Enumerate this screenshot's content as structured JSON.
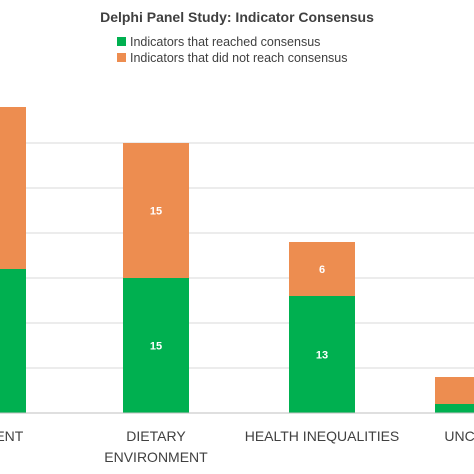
{
  "chart_data": {
    "type": "bar",
    "stacked": true,
    "title": "Delphi Panel Study: Indicator Consensus",
    "legend_position": "top",
    "grid": true,
    "ylim": [
      0,
      34
    ],
    "categories": [
      "ONMENT",
      "DIETARY ENVIRONMENT",
      "HEALTH INEQUALITIES",
      "UNCAT"
    ],
    "category_lines": [
      [
        "ONMENT"
      ],
      [
        "DIETARY",
        "ENVIRONMENT"
      ],
      [
        "HEALTH INEQUALITIES"
      ],
      [
        "UNCAT"
      ]
    ],
    "series": [
      {
        "name": "Indicators that reached consensus",
        "color": "#00b050",
        "values": [
          16,
          15,
          13,
          1
        ],
        "labels": [
          "",
          "15",
          "13",
          ""
        ]
      },
      {
        "name": "Indicators that did not reach consensus",
        "color": "#ed8d50",
        "values": [
          18,
          15,
          6,
          3
        ],
        "labels": [
          "",
          "15",
          "6",
          ""
        ]
      }
    ]
  }
}
